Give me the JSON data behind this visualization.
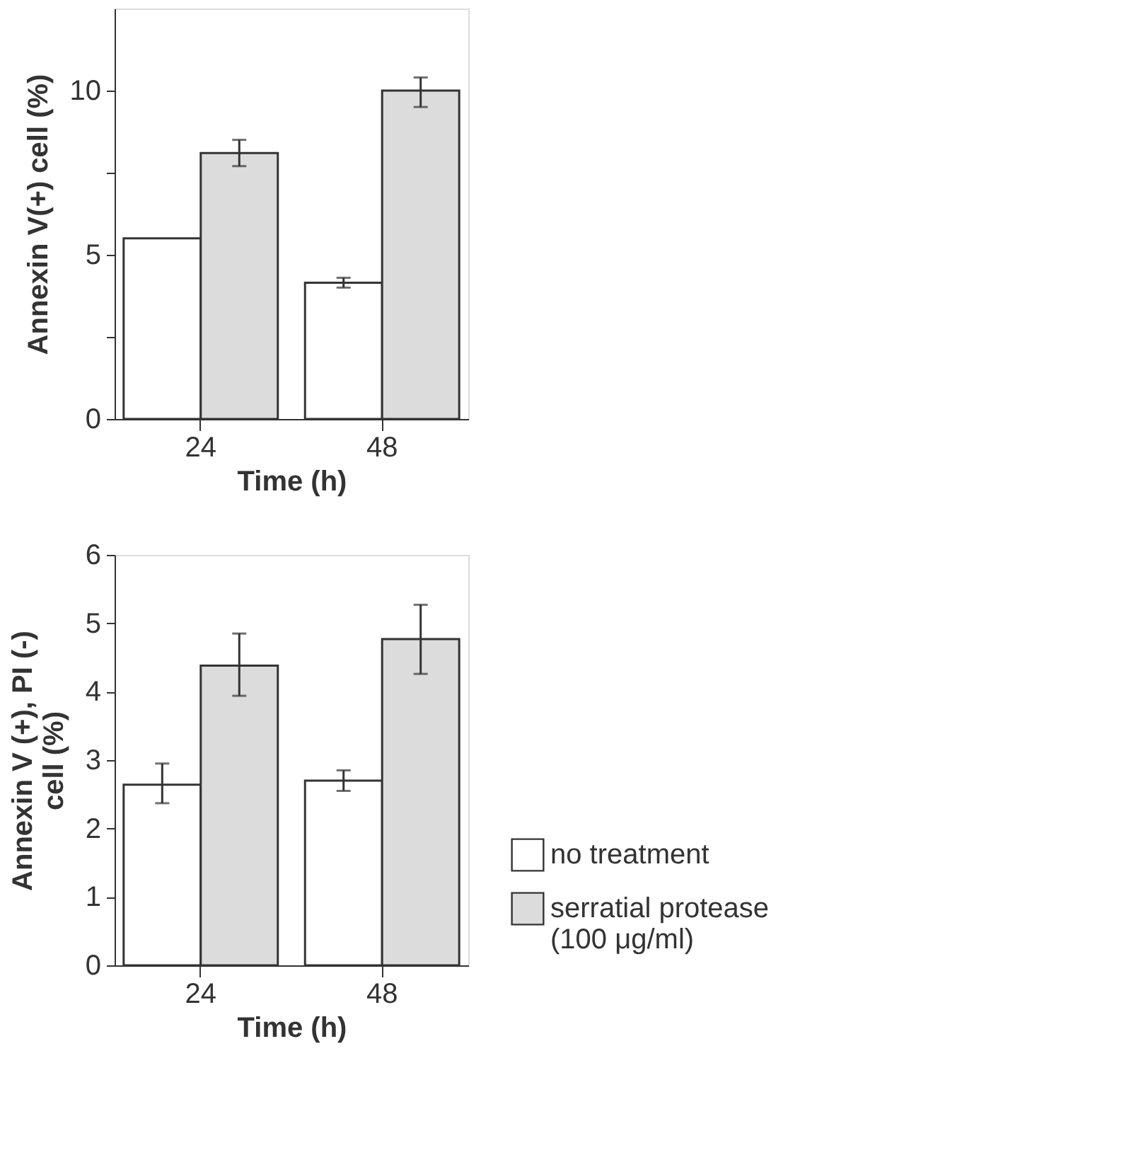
{
  "chart_data": [
    {
      "type": "bar",
      "categories": [
        "24",
        "48"
      ],
      "xlabel": "Time (h)",
      "ylabel": "Annexin V(+) cell (%)",
      "ylim": [
        0,
        12.5
      ],
      "yticks": [
        0,
        {
          "value": 2.5,
          "label": null
        },
        5,
        {
          "value": 7.5,
          "label": null
        },
        10
      ],
      "grid": false,
      "legend": false,
      "series": [
        {
          "color": "#ffffff",
          "values": [
            5.5,
            4.15
          ],
          "errors": [
            null,
            [
              4.0,
              4.3
            ]
          ]
        },
        {
          "color": "#dcdcdc",
          "values": [
            8.1,
            10.0
          ],
          "errors": [
            [
              7.7,
              8.5
            ],
            [
              9.5,
              10.4
            ]
          ]
        }
      ]
    },
    {
      "type": "bar",
      "categories": [
        "24",
        "48"
      ],
      "xlabel": "Time (h)",
      "ylabel": "Annexin V (+), PI (-)\ncell (%)",
      "ylim": [
        0,
        6
      ],
      "yticks": [
        0,
        1,
        2,
        3,
        4,
        5,
        6
      ],
      "grid": false,
      "legend": "right",
      "series": [
        {
          "name": "no treatment",
          "color": "#ffffff",
          "values": [
            2.64,
            2.7
          ],
          "errors": [
            [
              2.37,
              2.95
            ],
            [
              2.55,
              2.85
            ]
          ]
        },
        {
          "name": "serratial protease\n(100 μg/ml)",
          "color": "#dcdcdc",
          "values": [
            4.38,
            4.77
          ],
          "errors": [
            [
              3.94,
              4.85
            ],
            [
              4.26,
              5.27
            ]
          ]
        }
      ]
    }
  ]
}
